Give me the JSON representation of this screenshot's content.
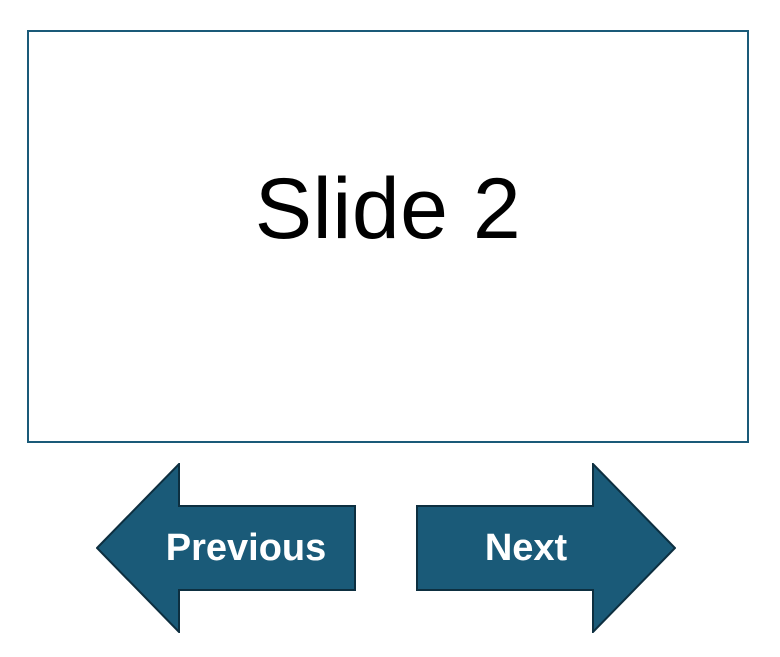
{
  "slide": {
    "title": "Slide 2"
  },
  "navigation": {
    "previous_label": "Previous",
    "next_label": "Next"
  },
  "icons": {
    "previous": "arrow-left-icon",
    "next": "arrow-right-icon"
  },
  "colors": {
    "accent": "#1a5a78",
    "arrow_outline": "#0d2f40",
    "label": "#ffffff"
  }
}
